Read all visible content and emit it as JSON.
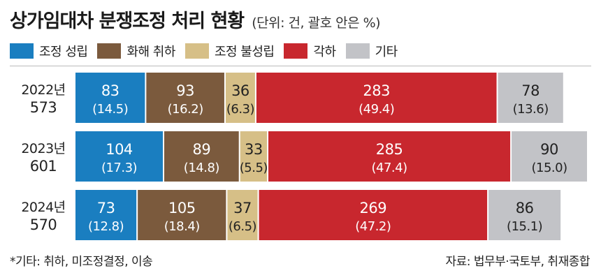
{
  "header": {
    "title": "상가임대차 분쟁조정 처리 현황",
    "unit": "(단위: 건, 괄호 안은 %)"
  },
  "footer": {
    "note": "*기타: 취하, 미조정결정, 이송",
    "source": "자료: 법무부·국토부, 취재종합"
  },
  "chart_data": {
    "type": "bar",
    "orientation": "horizontal",
    "stacked": true,
    "categories": [
      "2022년",
      "2023년",
      "2024년"
    ],
    "totals": [
      "573",
      "601",
      "570"
    ],
    "series": [
      {
        "name": "조정 성립",
        "color": "#1a7ec0",
        "text_color": "#ffffff",
        "values": [
          83,
          104,
          73
        ],
        "percents": [
          "(14.5)",
          "(17.3)",
          "(12.8)"
        ]
      },
      {
        "name": "화해 취하",
        "color": "#7b5a3d",
        "text_color": "#ffffff",
        "values": [
          93,
          89,
          105
        ],
        "percents": [
          "(16.2)",
          "(14.8)",
          "(18.4)"
        ]
      },
      {
        "name": "조정 불성립",
        "color": "#d6bf87",
        "text_color": "#222222",
        "values": [
          36,
          33,
          37
        ],
        "percents": [
          "(6.3)",
          "(5.5)",
          "(6.5)"
        ]
      },
      {
        "name": "각하",
        "color": "#c8272e",
        "text_color": "#ffffff",
        "values": [
          283,
          285,
          269
        ],
        "percents": [
          "(49.4)",
          "(47.4)",
          "(47.2)"
        ]
      },
      {
        "name": "기타",
        "color": "#c2c3c7",
        "text_color": "#222222",
        "values": [
          78,
          90,
          86
        ],
        "percents": [
          "(13.6)",
          "(15.0)",
          "(15.1)"
        ]
      }
    ],
    "xlim": [
      0,
      601
    ],
    "grid": false,
    "legend": "top-left"
  }
}
